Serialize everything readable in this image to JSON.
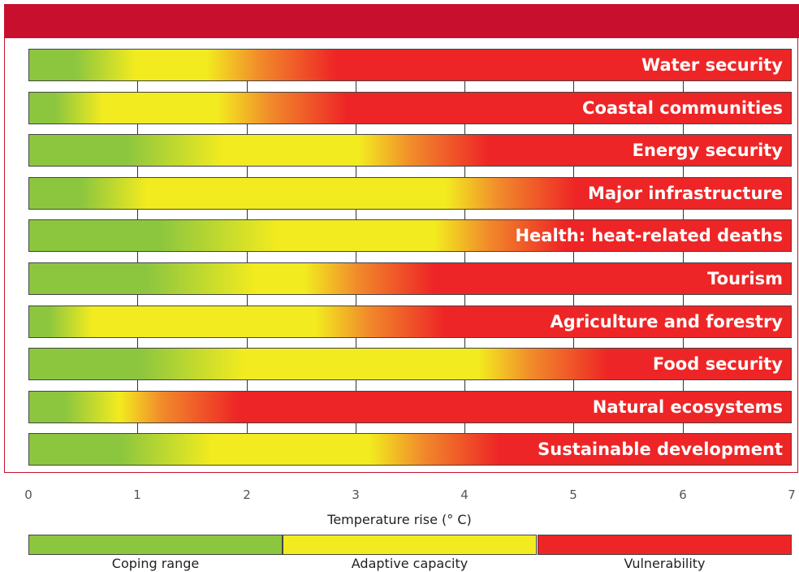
{
  "chart_data": {
    "type": "bar",
    "xlabel": "Temperature rise (° C)",
    "xlim": [
      0,
      7
    ],
    "x_ticks": [
      "0",
      "1",
      "2",
      "3",
      "4",
      "5",
      "6",
      "7"
    ],
    "zones": [
      {
        "name": "Coping range",
        "color": "#8cc63f"
      },
      {
        "name": "Adaptive capacity",
        "color": "#f2eb1f"
      },
      {
        "name": "Vulnerability",
        "color": "#ee2526"
      }
    ],
    "series": [
      {
        "name": "Water security",
        "coping_end": 0.7,
        "adaptive_end": 1.7
      },
      {
        "name": "Coastal communities",
        "coping_end": 0.4,
        "adaptive_end": 1.8
      },
      {
        "name": "Energy security",
        "coping_end": 1.5,
        "adaptive_end": 3.1
      },
      {
        "name": "Major infrastructure",
        "coping_end": 0.8,
        "adaptive_end": 3.9
      },
      {
        "name": "Health: heat-related deaths",
        "coping_end": 2.0,
        "adaptive_end": 3.8
      },
      {
        "name": "Tourism",
        "coping_end": 1.8,
        "adaptive_end": 2.6
      },
      {
        "name": "Agriculture and forestry",
        "coping_end": 0.3,
        "adaptive_end": 2.7
      },
      {
        "name": "Food security",
        "coping_end": 1.7,
        "adaptive_end": 4.2
      },
      {
        "name": "Natural ecosystems",
        "coping_end": 0.55,
        "adaptive_end": 0.8
      },
      {
        "name": "Sustainable development",
        "coping_end": 1.4,
        "adaptive_end": 3.2
      }
    ]
  }
}
